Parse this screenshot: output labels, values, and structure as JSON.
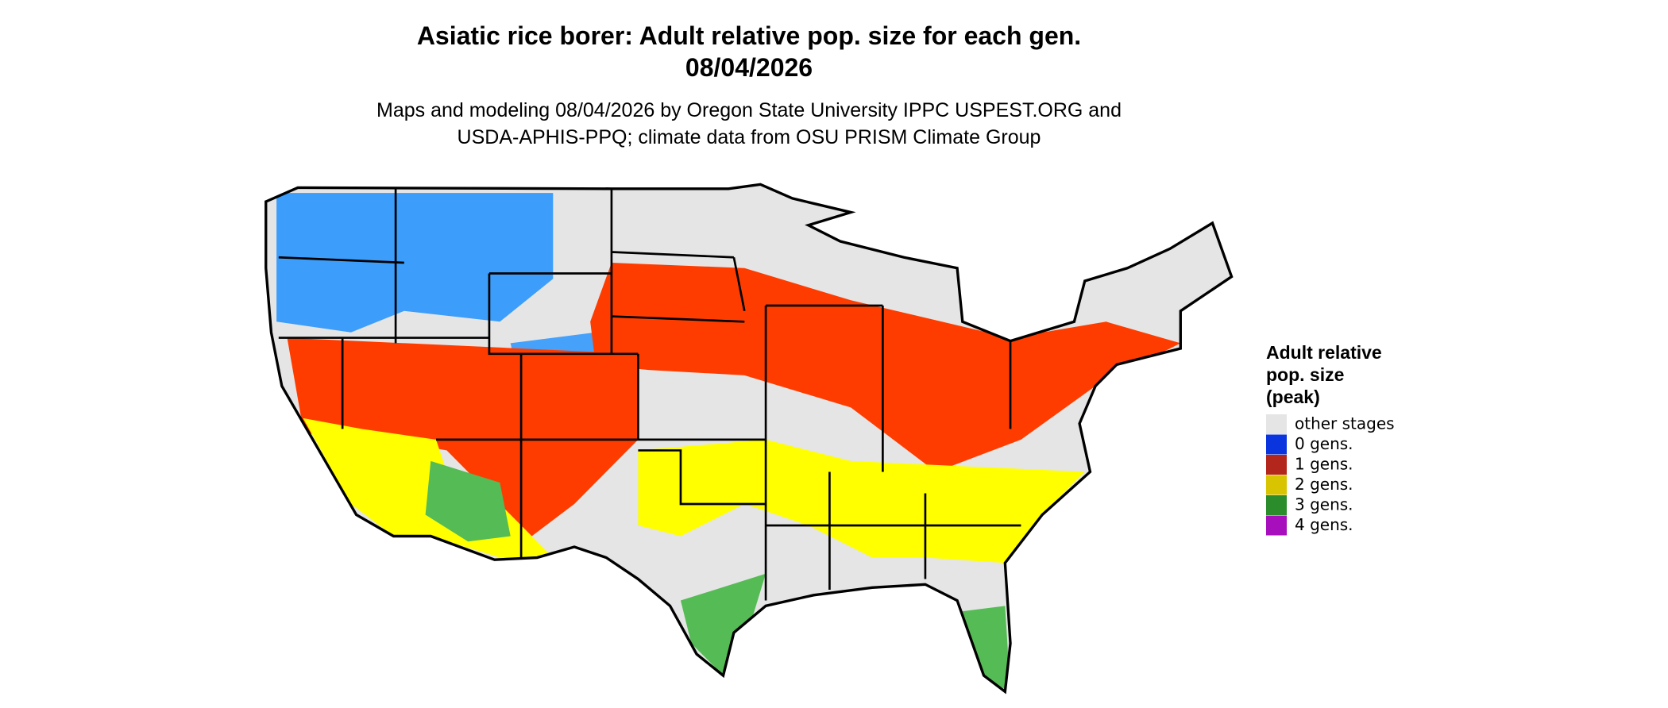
{
  "title": "Asiatic rice borer: Adult relative pop. size for each gen.",
  "date": "08/04/2026",
  "subtitle": [
    "Maps and modeling 08/04/2026 by Oregon State University IPPC USPEST.ORG and",
    "USDA-APHIS-PPQ; climate data from OSU PRISM Climate Group"
  ],
  "legend": {
    "title": [
      "Adult relative",
      "pop. size",
      "(peak)"
    ],
    "items": [
      {
        "label": "other stages",
        "color": "#e5e5e5"
      },
      {
        "label": "0 gens.",
        "color": "#0a35de"
      },
      {
        "label": "1 gens.",
        "color": "#b3261b"
      },
      {
        "label": "2 gens.",
        "color": "#d8c400"
      },
      {
        "label": "3 gens.",
        "color": "#2b8c2b"
      },
      {
        "label": "4 gens.",
        "color": "#a70fbd"
      }
    ]
  }
}
